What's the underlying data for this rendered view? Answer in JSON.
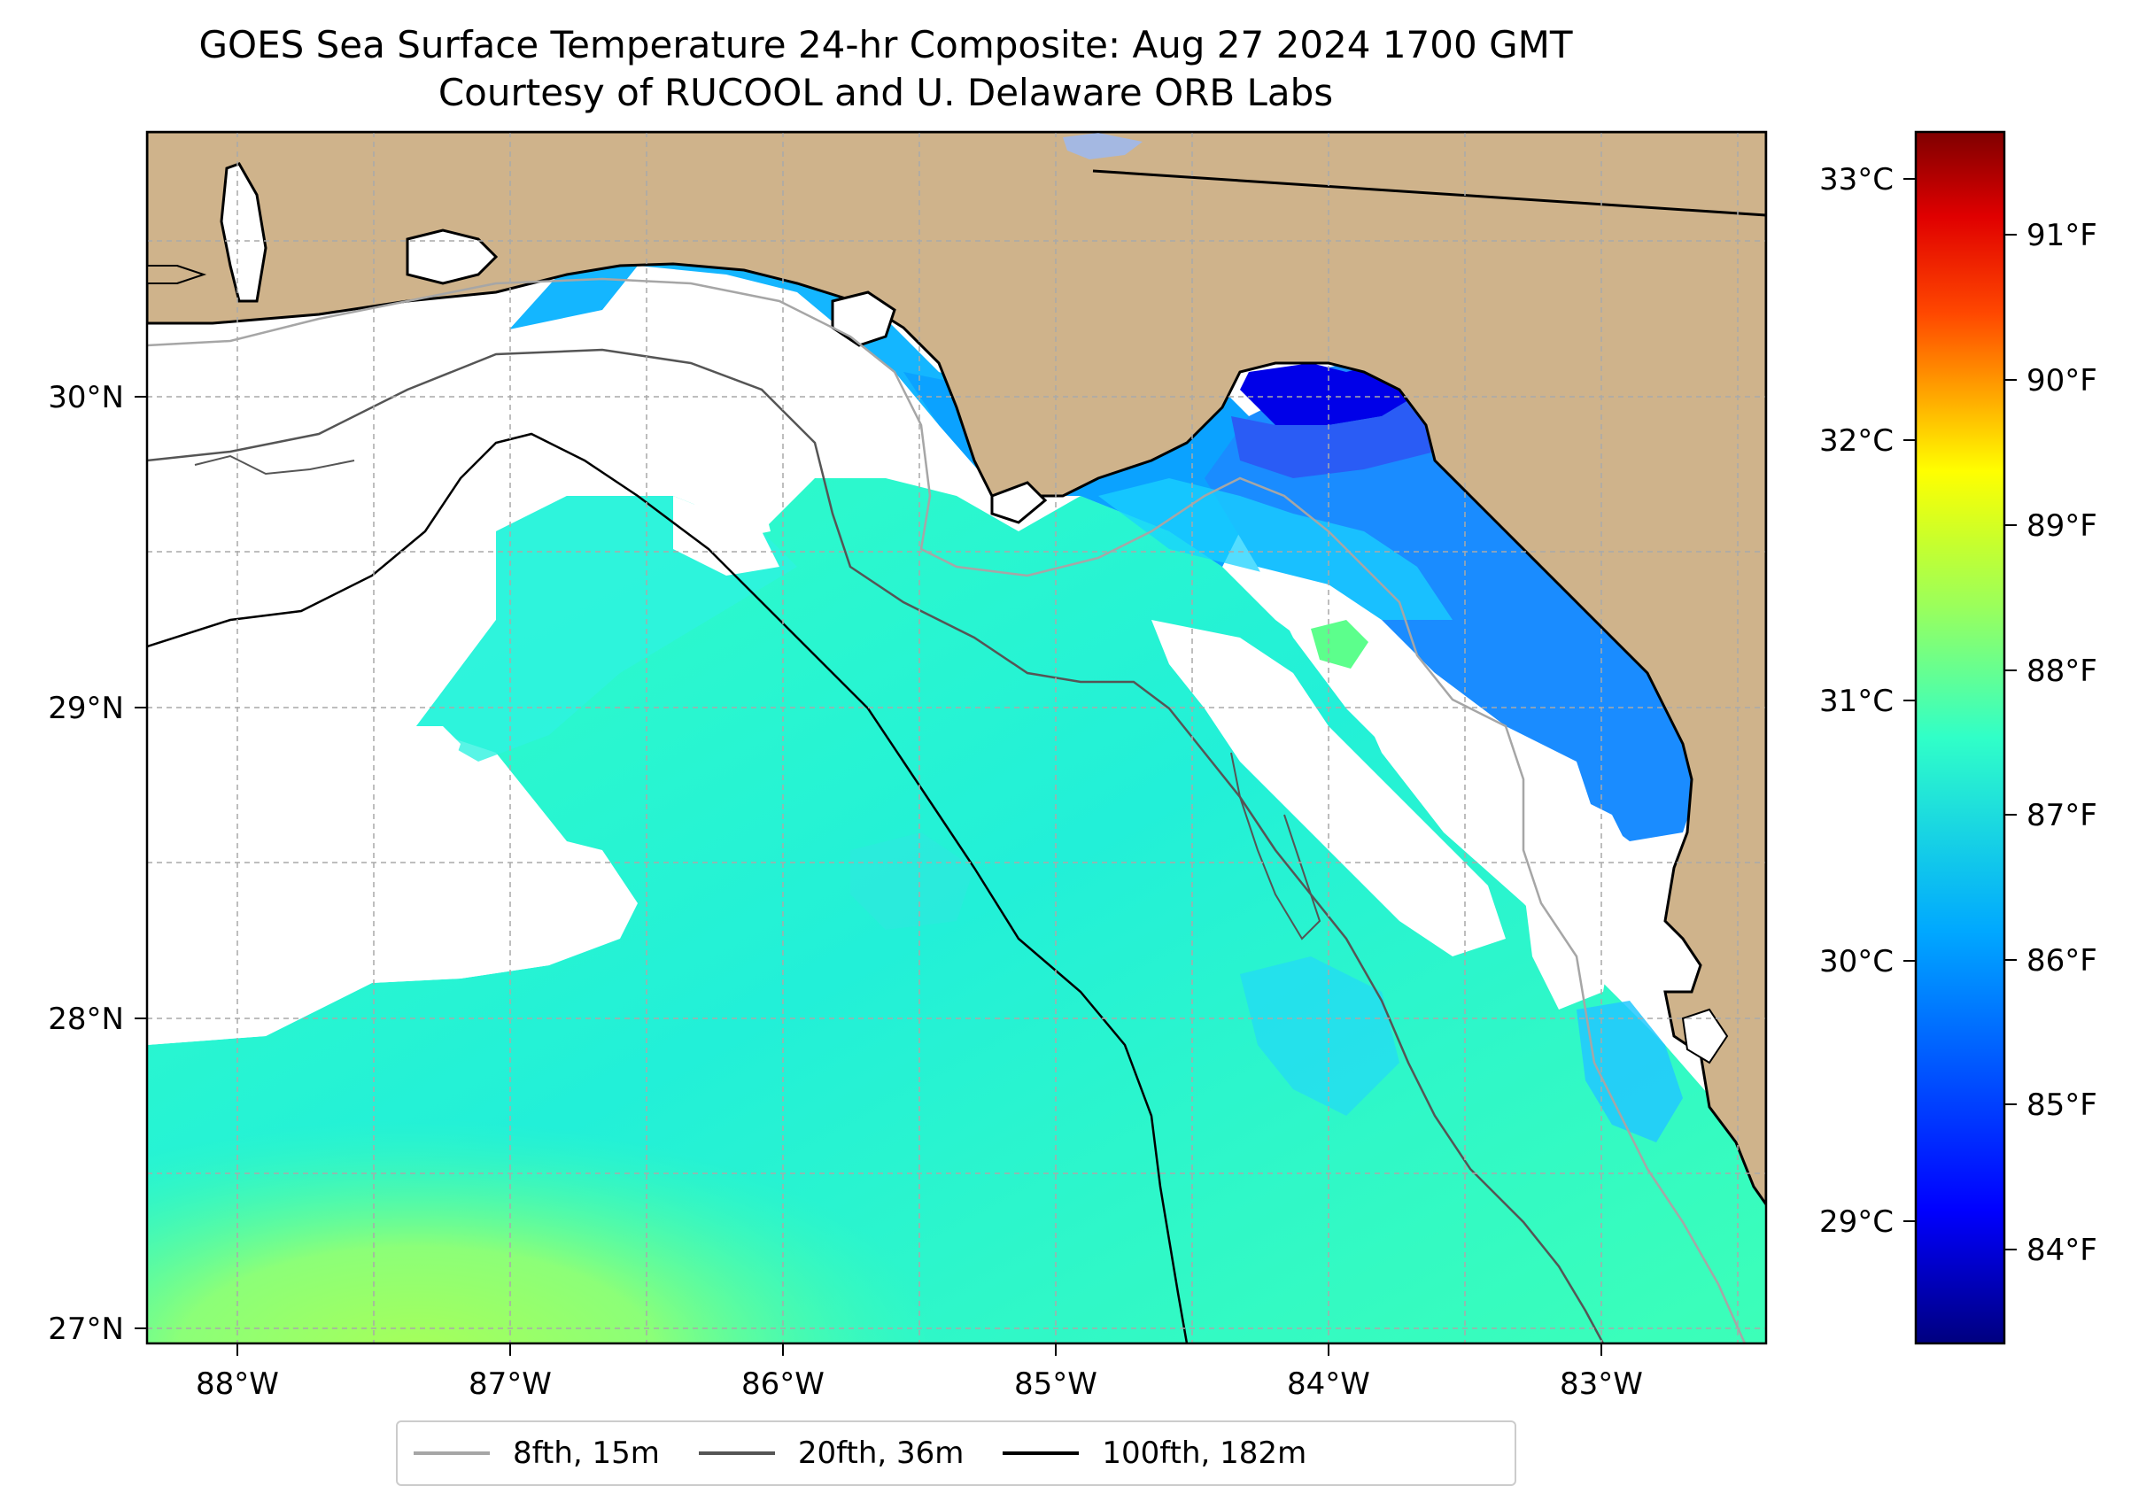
{
  "title": {
    "line1": "GOES Sea Surface Temperature 24-hr Composite: Aug 27 2024 1700 GMT",
    "line2": "Courtesy of RUCOOL and U. Delaware ORB Labs"
  },
  "map": {
    "longitude_labels": [
      "88°W",
      "87°W",
      "86°W",
      "85°W",
      "84°W",
      "83°W"
    ],
    "latitude_labels": [
      "30°N",
      "29°N",
      "28°N",
      "27°N"
    ],
    "land_color": "#cfb38b",
    "coast_color": "#000000",
    "gridlines": "dashed"
  },
  "colorbar": {
    "colormap": "jet",
    "celsius_labels": [
      "33°C",
      "32°C",
      "31°C",
      "30°C",
      "29°C"
    ],
    "fahrenheit_labels": [
      "91°F",
      "90°F",
      "89°F",
      "88°F",
      "87°F",
      "86°F",
      "85°F",
      "84°F"
    ]
  },
  "legend": {
    "placement": "bottom-center",
    "items": [
      {
        "label": "8fth, 15m",
        "color": "#a6a6a6"
      },
      {
        "label": "20fth, 36m",
        "color": "#555555"
      },
      {
        "label": "100fth, 182m",
        "color": "#000000"
      }
    ]
  }
}
